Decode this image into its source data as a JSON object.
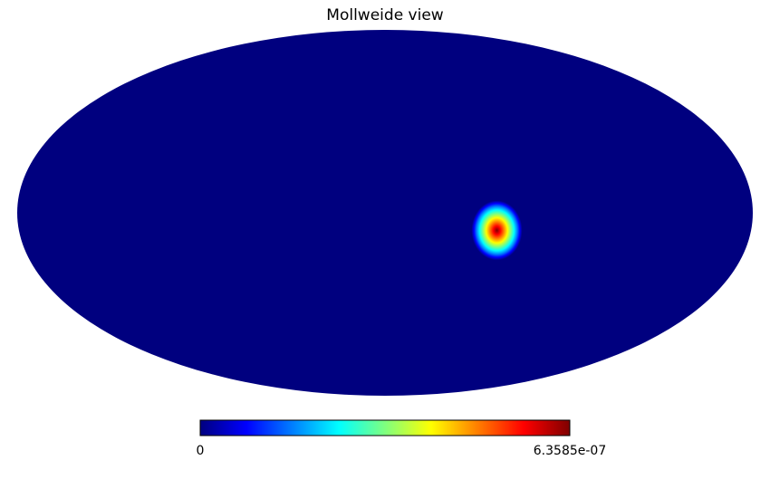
{
  "chart_data": {
    "type": "heatmap",
    "projection": "mollweide",
    "title": "Mollweide view",
    "colormap": "jet",
    "colormap_stops": [
      "#00007f",
      "#0000ff",
      "#007fff",
      "#00ffff",
      "#7fff7f",
      "#ffff00",
      "#ff7f00",
      "#ff0000",
      "#7f0000"
    ],
    "background_color": "#00007f",
    "colorbar": {
      "min_label": "0",
      "max_label": "6.3585e-07",
      "min": 0,
      "max": 6.3585e-07
    },
    "features": [
      {
        "kind": "gaussian-spot",
        "longitude_deg": -55,
        "latitude_deg": -7,
        "peak_value": 6.3585e-07
      }
    ]
  }
}
